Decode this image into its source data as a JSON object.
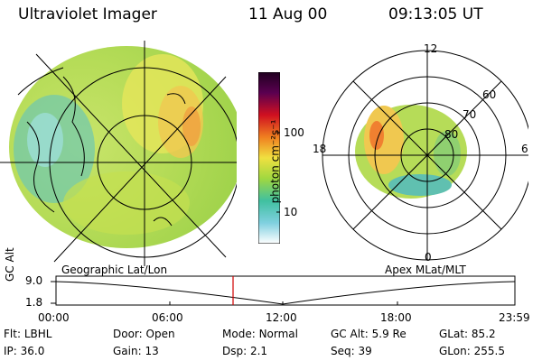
{
  "header": {
    "instrument": "Ultraviolet Imager",
    "date": "11 Aug 00",
    "time": "09:13:05 UT"
  },
  "colorbar": {
    "units": "photon cm⁻²s⁻¹",
    "ticks": [
      "100",
      "10"
    ]
  },
  "polar_plot": {
    "mlt_labels": [
      "12",
      "18",
      "6",
      "0"
    ],
    "lat_labels": [
      "60",
      "70",
      "80"
    ]
  },
  "panel_labels": {
    "left": "Geographic Lat/Lon",
    "right": "Apex MLat/MLT"
  },
  "timeline": {
    "axis_label": "GC Alt",
    "y_ticks": [
      "9.0",
      "1.8"
    ],
    "x_ticks": [
      "00:00",
      "06:00",
      "12:00",
      "18:00",
      "23:59"
    ]
  },
  "info": {
    "row1": [
      {
        "label": "Flt:",
        "value": "LBHL"
      },
      {
        "label": "Door:",
        "value": "Open"
      },
      {
        "label": "Mode:",
        "value": "Normal"
      },
      {
        "label": "GC Alt:",
        "value": "5.9 Re"
      },
      {
        "label": "GLat:",
        "value": "85.2"
      }
    ],
    "row2": [
      {
        "label": "IP:",
        "value": "36.0"
      },
      {
        "label": "Gain:",
        "value": "13"
      },
      {
        "label": "Dsp:",
        "value": "2.1"
      },
      {
        "label": "Seq:",
        "value": "39"
      },
      {
        "label": "GLon:",
        "value": "255.5"
      }
    ]
  },
  "colors": {
    "current_time_marker": "#d00000",
    "image_base": "#a8d84a"
  }
}
